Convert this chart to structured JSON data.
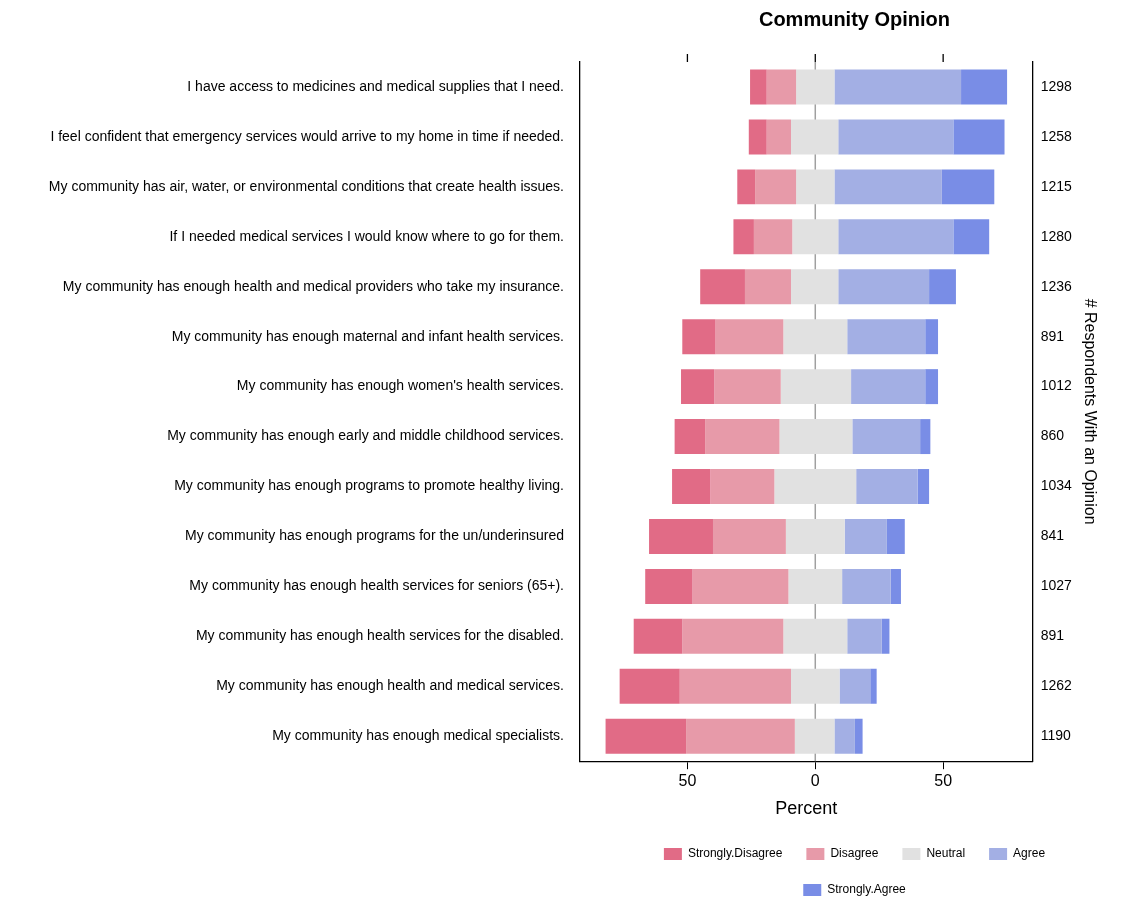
{
  "chart_data": {
    "type": "bar",
    "orientation": "horizontal",
    "title": "Community Opinion",
    "xlabel": "Percent",
    "y2label": "# Respondents With an Opinion",
    "categories": [
      "I have access to medicines and medical supplies that I need.",
      "I feel confident that emergency services would arrive to my home in time if needed.",
      "My community has air, water, or environmental conditions that create health issues.",
      "If I needed medical services I would know where to go for them.",
      "My community has enough health and medical providers who take my insurance.",
      "My community has enough maternal and infant health services.",
      "My community has enough women's health services.",
      "My community has enough early and middle childhood services.",
      "My community has enough programs to promote healthy living.",
      "My community has enough programs for the un/underinsured",
      "My community has enough health services for seniors (65+).",
      "My community has enough health services for the disabled.",
      "My community has enough health and medical services.",
      "My community has enough medical specialists."
    ],
    "y2_categories": [
      "1298",
      "1258",
      "1215",
      "1280",
      "1236",
      "891",
      "1012",
      "860",
      "1034",
      "841",
      "1027",
      "891",
      "1262",
      "1190"
    ],
    "series": [
      {
        "name": "Strongly.Disagree",
        "color": "#e16b86",
        "base": [
          -25.5,
          -26,
          -30.5,
          -32,
          -45,
          -52,
          -52.5,
          -55,
          -56,
          -65,
          -66.5,
          -71,
          -76.5,
          -82
        ],
        "values": [
          6.5,
          7,
          7,
          8,
          17.5,
          13,
          13,
          12,
          15,
          25,
          18.5,
          19,
          23.5,
          31.5
        ]
      },
      {
        "name": "Disagree",
        "color": "#e79aa9",
        "base": [
          -19,
          -19,
          -23.5,
          -24,
          -27.5,
          -39,
          -39.5,
          -43,
          -41,
          -40,
          -48,
          -52,
          -53,
          -50.5
        ],
        "values": [
          11.5,
          9.5,
          16,
          15,
          18,
          26.5,
          26,
          29,
          25,
          28.5,
          37.5,
          39.5,
          43.5,
          42.5
        ]
      },
      {
        "name": "Neutral",
        "color": "#e1e1e1",
        "base": [
          -7.5,
          -9.5,
          -7.5,
          -9,
          -9.5,
          -12.5,
          -13.5,
          -14,
          -16,
          -11.5,
          -10.5,
          -12.5,
          -9.5,
          -8
        ],
        "values": [
          15,
          18.5,
          15,
          18,
          18.5,
          25,
          27.5,
          28.5,
          32,
          23,
          21,
          25,
          19,
          15.5
        ]
      },
      {
        "name": "Agree",
        "color": "#a3afe4",
        "base": [
          7.5,
          9,
          7.5,
          9,
          9,
          12.5,
          14,
          14.5,
          16,
          11.5,
          10.5,
          12.5,
          9.5,
          7.5
        ],
        "values": [
          49.5,
          45,
          42,
          45,
          35.5,
          30.5,
          29,
          26.5,
          24,
          16.5,
          19,
          13.5,
          12,
          8
        ]
      },
      {
        "name": "Strongly.Agree",
        "color": "#798de6",
        "base": [
          57,
          54,
          49.5,
          54,
          44.5,
          43,
          43,
          41,
          40,
          28,
          29.5,
          26,
          21.5,
          15.5
        ],
        "values": [
          18,
          20,
          20.5,
          14,
          10.5,
          5,
          5,
          4,
          4.5,
          7,
          4,
          3,
          2.5,
          3
        ]
      }
    ],
    "xlim": [
      -92,
      85
    ],
    "xticks": [
      {
        "value": -50,
        "label": "50"
      },
      0,
      {
        "value": 50,
        "label": "50"
      }
    ],
    "tick_labels": "x",
    "ref_lines": [
      {
        "axis": "x",
        "value": 0,
        "color": "#a0a0a0"
      }
    ],
    "grid": false,
    "legend": "bottom"
  }
}
